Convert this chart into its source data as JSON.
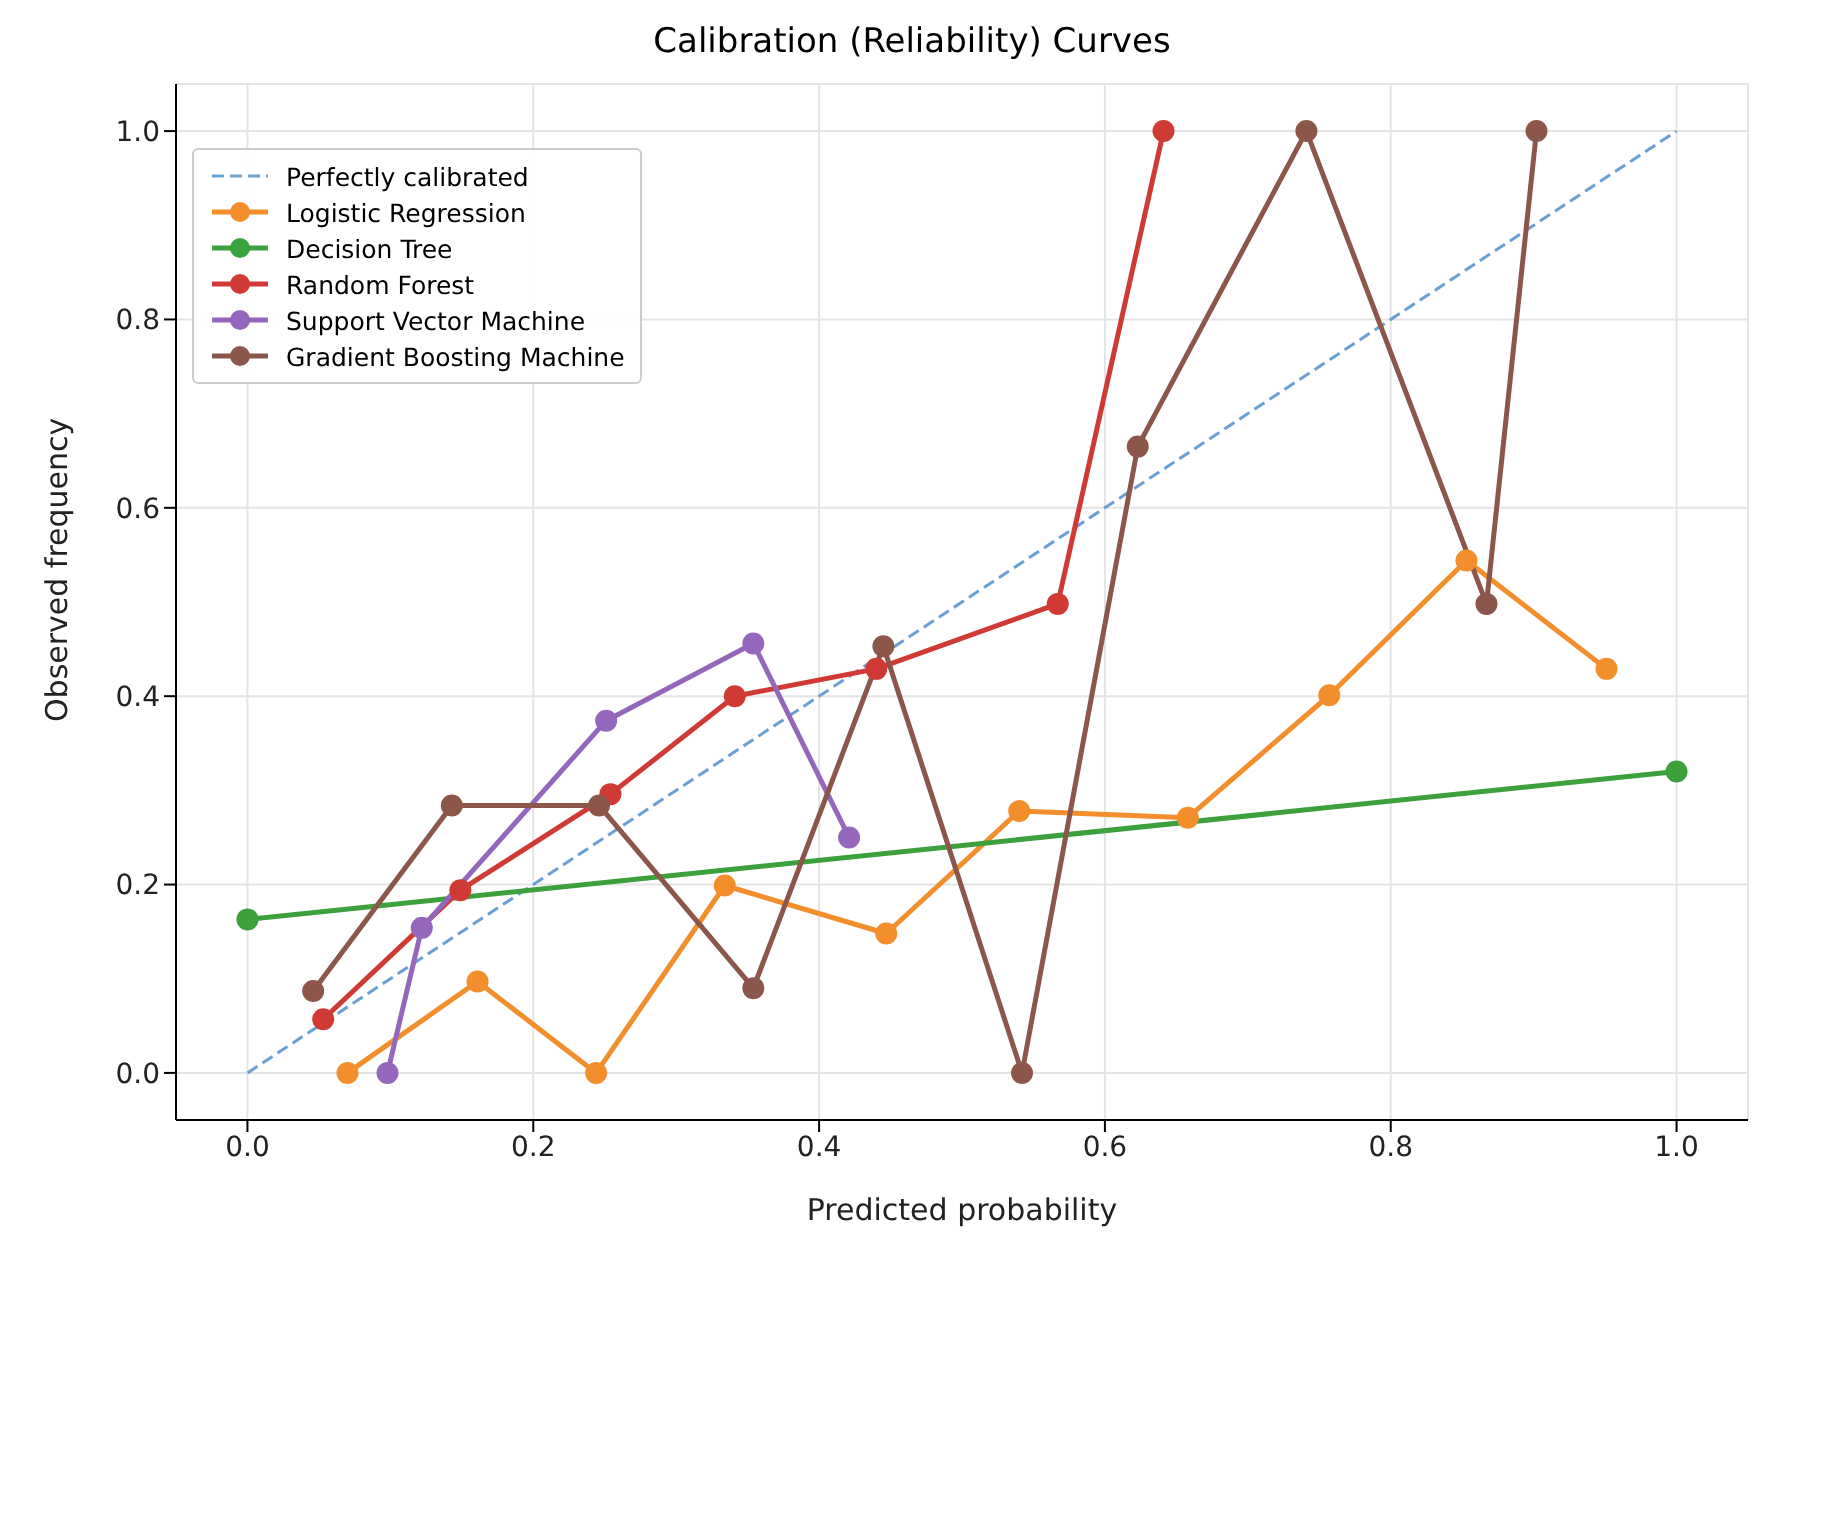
{
  "chart_data": {
    "type": "line",
    "title": "Calibration (Reliability) Curves",
    "xlabel": "Predicted probability",
    "ylabel": "Observed frequency",
    "xlim": [
      -0.05,
      1.05
    ],
    "ylim": [
      -0.05,
      1.05
    ],
    "xticks": [
      {
        "value": 0,
        "label": "0.0"
      },
      0.2,
      0.4,
      0.6,
      0.8,
      {
        "value": 1,
        "label": "1.0"
      }
    ],
    "yticks": [
      {
        "value": 0,
        "label": "0.0"
      },
      0.2,
      0.4,
      0.6,
      0.8,
      {
        "value": 1,
        "label": "1.0"
      }
    ],
    "grid": true,
    "legend": "top left",
    "marker": "circle",
    "series": [
      {
        "name": "Perfectly calibrated",
        "color": "#6a9fd4",
        "x": [
          0,
          1
        ],
        "values": [
          0,
          1
        ],
        "marker": "none",
        "line_style": "dashed"
      },
      {
        "name": "Logistic Regression",
        "color": "#f28e2b",
        "x": [
          0.07,
          0.161,
          0.244,
          0.334,
          0.447,
          0.54,
          0.658,
          0.757,
          0.853,
          0.951
        ],
        "values": [
          0,
          0.097,
          0,
          0.199,
          0.148,
          0.278,
          0.271,
          0.401,
          0.544,
          0.429
        ]
      },
      {
        "name": "Decision Tree",
        "color": "#3ca03c",
        "x": [
          0,
          1
        ],
        "values": [
          0.163,
          0.32
        ]
      },
      {
        "name": "Random Forest",
        "color": "#d03a35",
        "x": [
          0.053,
          0.149,
          0.254,
          0.341,
          0.44,
          0.567,
          0.641
        ],
        "values": [
          0.057,
          0.194,
          0.296,
          0.4,
          0.429,
          0.498,
          1
        ]
      },
      {
        "name": "Support Vector Machine",
        "color": "#9467bd",
        "x": [
          0.098,
          0.122,
          0.251,
          0.354,
          0.421
        ],
        "values": [
          0,
          0.154,
          0.374,
          0.456,
          0.25
        ]
      },
      {
        "name": "Gradient Boosting Machine",
        "color": "#8c564b",
        "x": [
          0.046,
          0.143,
          0.246,
          0.354,
          0.445,
          0.542,
          0.623,
          0.741,
          0.867,
          0.902
        ],
        "values": [
          0.087,
          0.284,
          0.284,
          0.09,
          0.453,
          0,
          0.665,
          1,
          0.498,
          1
        ]
      }
    ]
  }
}
